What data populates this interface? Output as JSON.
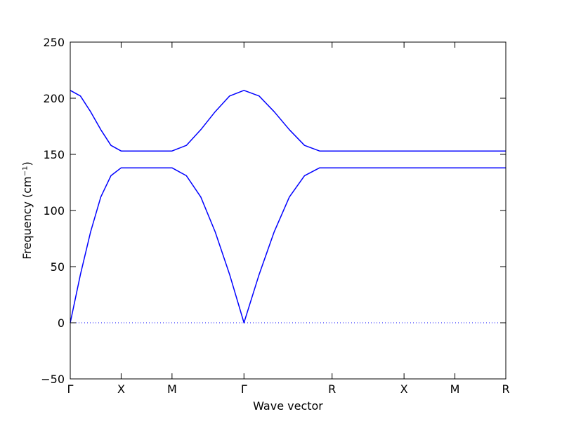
{
  "chart_data": {
    "type": "line",
    "x_label": "Wave vector",
    "y_label": "Frequency (cm⁻¹)",
    "x": [
      0,
      0.1,
      0.2,
      0.3,
      0.4,
      0.5,
      1.0,
      1.141,
      1.283,
      1.424,
      1.566,
      1.707,
      1.856,
      2.004,
      2.153,
      2.302,
      2.45,
      2.573,
      3.28,
      3.78,
      4.28
    ],
    "series": [
      {
        "color": "#0000ff",
        "values": [
          207,
          202,
          188,
          172,
          158,
          153,
          153,
          158,
          172,
          188,
          202,
          207,
          202,
          188,
          172,
          158,
          153,
          153,
          153,
          153,
          153
        ]
      },
      {
        "color": "#0000ff",
        "values": [
          0,
          43,
          81,
          112,
          131,
          138,
          138,
          131,
          112,
          81,
          43,
          0,
          43,
          81,
          112,
          131,
          138,
          138,
          138,
          138,
          138
        ]
      }
    ],
    "xlim": [
      0,
      4.28
    ],
    "ylim": [
      -50,
      250
    ],
    "xticks": [
      {
        "value": 0,
        "label": "Γ"
      },
      {
        "value": 0.5,
        "label": "X"
      },
      {
        "value": 1.0,
        "label": "M"
      },
      {
        "value": 1.707,
        "label": "Γ"
      },
      {
        "value": 2.573,
        "label": "R"
      },
      {
        "value": 3.28,
        "label": "X"
      },
      {
        "value": 3.78,
        "label": "M"
      },
      {
        "value": 4.28,
        "label": "R"
      }
    ],
    "yticks": [
      {
        "value": -50,
        "label": "−50"
      },
      0,
      50,
      100,
      150,
      200,
      250
    ],
    "hlines": [
      0
    ]
  }
}
